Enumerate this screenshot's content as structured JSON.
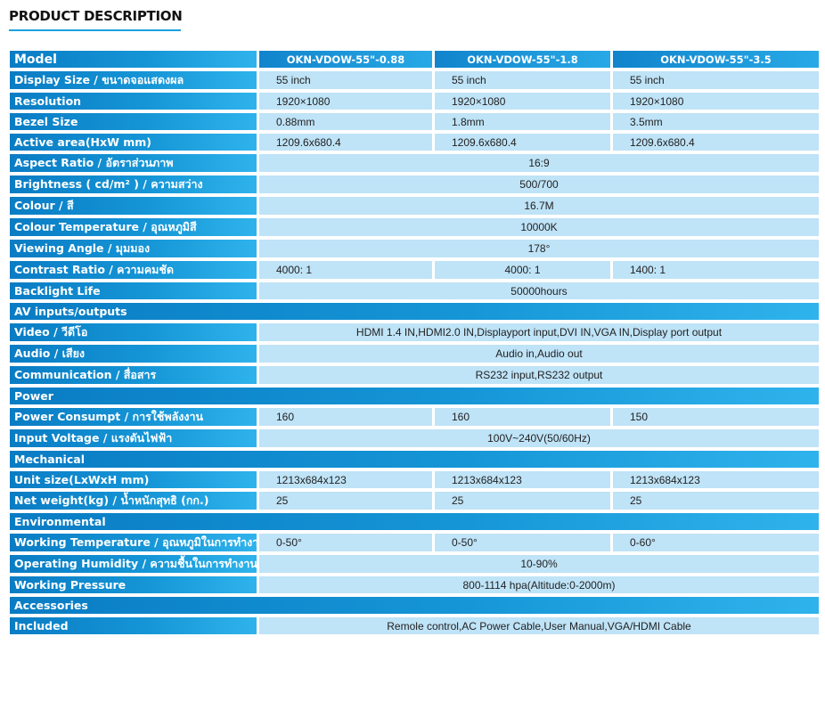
{
  "title": "PRODUCT DESCRIPTION",
  "colors": {
    "header_blue": "#1595d6",
    "cell_light": "#bfe3f7",
    "rule": "#1aa1e0"
  },
  "table": {
    "model_label": "Model",
    "models": [
      "OKN-VDOW-55\"-0.88",
      "OKN-VDOW-55\"-1.8",
      "OKN-VDOW-55\"-3.5"
    ],
    "rows": [
      {
        "type": "row",
        "label": "Display Size / ขนาดจอแสดงผล",
        "values": [
          "55 inch",
          "55 inch",
          "55 inch"
        ]
      },
      {
        "type": "row",
        "label": "Resolution",
        "values": [
          "1920×1080",
          "1920×1080",
          "1920×1080"
        ]
      },
      {
        "type": "row",
        "label": "Bezel Size",
        "values": [
          "0.88mm",
          "1.8mm",
          "3.5mm"
        ]
      },
      {
        "type": "row",
        "label": "Active area(HxW mm)",
        "values": [
          "1209.6x680.4",
          "1209.6x680.4",
          "1209.6x680.4"
        ]
      },
      {
        "type": "row",
        "label": "Aspect Ratio / อัตราส่วนภาพ",
        "values": [
          "16:9"
        ]
      },
      {
        "type": "row",
        "label": "Brightness ( cd/m² ) / ความสว่าง",
        "values": [
          "500/700"
        ]
      },
      {
        "type": "row",
        "label": "Colour / สี",
        "values": [
          "16.7M"
        ]
      },
      {
        "type": "row",
        "label": "Colour Temperature / อุณหภูมิสี",
        "values": [
          "10000K"
        ]
      },
      {
        "type": "row",
        "label": "Viewing Angle / มุมมอง",
        "values": [
          "178°"
        ]
      },
      {
        "type": "row3",
        "label": "Contrast Ratio / ความคมชัด",
        "values": [
          "4000: 1",
          "4000: 1",
          "1400: 1"
        ]
      },
      {
        "type": "row",
        "label": "Backlight Life",
        "values": [
          "50000hours"
        ]
      },
      {
        "type": "section",
        "label": "AV inputs/outputs"
      },
      {
        "type": "row",
        "label": "Video / วีดีโอ",
        "values": [
          "HDMI 1.4 IN,HDMI2.0 IN,Displayport input,DVI IN,VGA IN,Display port output"
        ]
      },
      {
        "type": "row",
        "label": "Audio / เสียง",
        "values": [
          "Audio in,Audio out"
        ]
      },
      {
        "type": "row",
        "label": "Communication / สื่อสาร",
        "values": [
          "RS232 input,RS232 output"
        ]
      },
      {
        "type": "section",
        "label": "Power"
      },
      {
        "type": "row",
        "label": "Power Consumpt / การใช้พลังงาน",
        "values": [
          "160",
          "160",
          "150"
        ]
      },
      {
        "type": "row",
        "label": "Input Voltage / แรงดันไฟฟ้า",
        "values": [
          "100V~240V(50/60Hz)"
        ]
      },
      {
        "type": "section",
        "label": "Mechanical"
      },
      {
        "type": "row",
        "label": "Unit size(LxWxH mm)",
        "values": [
          "1213x684x123",
          "1213x684x123",
          "1213x684x123"
        ]
      },
      {
        "type": "row",
        "label": "Net weight(kg) / น้ำหนักสุทธิ (กก.)",
        "values": [
          "25",
          "25",
          "25"
        ]
      },
      {
        "type": "section",
        "label": "Environmental"
      },
      {
        "type": "row",
        "label": "Working Temperature / อุณหภูมิในการทำงาน",
        "values": [
          "0-50°",
          "0-50°",
          "0-60°"
        ]
      },
      {
        "type": "row",
        "label": "Operating Humidity / ความชื้นในการทำงาน",
        "values": [
          "10-90%"
        ]
      },
      {
        "type": "row",
        "label": "Working Pressure",
        "values": [
          "800-1114 hpa(Altitude:0-2000m)"
        ]
      },
      {
        "type": "section",
        "label": "Accessories"
      },
      {
        "type": "row",
        "label": "Included",
        "values": [
          "Remole control,AC Power Cable,User Manual,VGA/HDMI Cable"
        ]
      }
    ]
  }
}
